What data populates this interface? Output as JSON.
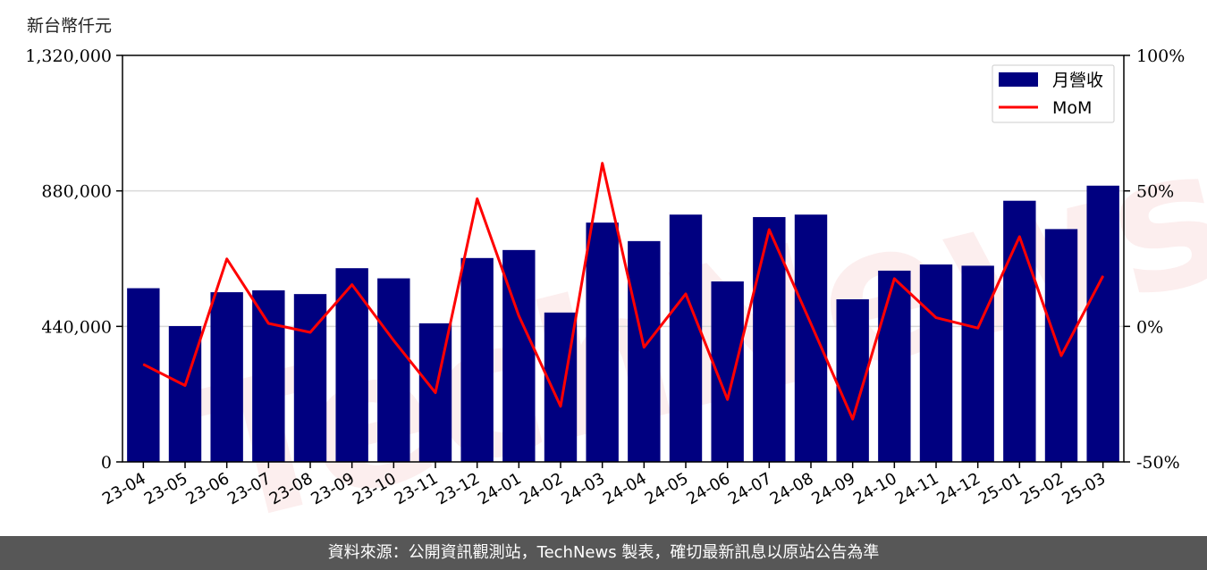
{
  "unit_label": "新台幣仟元",
  "footer_text": "資料來源：公開資訊觀測站，TechNews 製表，確切最新訊息以原站公告為準",
  "watermark": "TechNews",
  "colors": {
    "bar": "#000080",
    "line": "#ff0000",
    "grid": "#d9d9d9"
  },
  "chart_data": {
    "type": "bar",
    "categories": [
      "23-04",
      "23-05",
      "23-06",
      "23-07",
      "23-08",
      "23-09",
      "23-10",
      "23-11",
      "23-12",
      "24-01",
      "24-02",
      "24-03",
      "24-04",
      "24-05",
      "24-06",
      "24-07",
      "24-08",
      "24-09",
      "24-10",
      "24-11",
      "24-12",
      "25-01",
      "25-02",
      "25-03"
    ],
    "series": [
      {
        "name": "月營收",
        "type": "bar",
        "axis": "left",
        "values": [
          564000,
          441000,
          551000,
          557000,
          545000,
          629000,
          596000,
          450000,
          662000,
          688000,
          485000,
          777000,
          717000,
          803000,
          586000,
          795000,
          803000,
          528000,
          621000,
          641000,
          637000,
          848000,
          756000,
          897000
        ]
      },
      {
        "name": "MoM",
        "type": "line",
        "axis": "right",
        "values": [
          -14.0,
          -21.8,
          24.9,
          1.1,
          -2.2,
          15.4,
          -5.2,
          -24.5,
          47.1,
          3.9,
          -29.5,
          60.2,
          -7.7,
          12.0,
          -27.0,
          35.7,
          1.0,
          -34.2,
          17.6,
          3.2,
          -0.6,
          33.1,
          -10.8,
          18.6
        ]
      }
    ],
    "y_left": {
      "ylim": [
        0,
        1320000
      ],
      "ticks": [
        0,
        440000,
        880000,
        1320000
      ],
      "tick_labels": [
        "0",
        "440,000",
        "880,000",
        "1,320,000"
      ]
    },
    "y_right": {
      "ylim": [
        -50,
        100
      ],
      "ticks": [
        -50,
        0,
        50,
        100
      ],
      "tick_labels": [
        "-50%",
        "0%",
        "50%",
        "100%"
      ]
    },
    "grid": "horizontal",
    "legend": {
      "placement": "top-right",
      "entries": [
        "月營收",
        "MoM"
      ]
    }
  }
}
